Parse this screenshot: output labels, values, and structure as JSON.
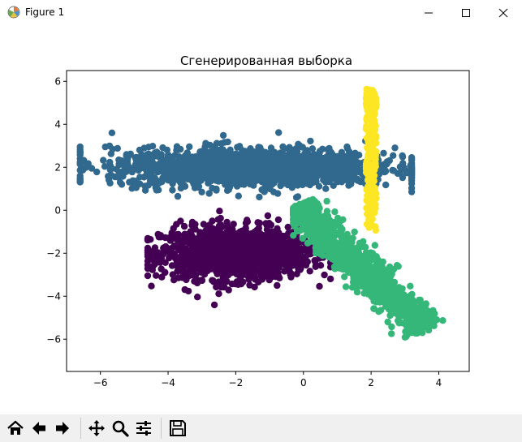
{
  "window": {
    "title": "Figure 1",
    "controls": {
      "minimize": "minimize-icon",
      "maximize": "maximize-icon",
      "close": "close-icon"
    }
  },
  "toolbar": {
    "buttons": [
      {
        "name": "home-button",
        "icon": "home-icon"
      },
      {
        "name": "back-button",
        "icon": "arrow-left-icon"
      },
      {
        "name": "forward-button",
        "icon": "arrow-right-icon"
      },
      {
        "name": "pan-button",
        "icon": "move-icon"
      },
      {
        "name": "zoom-button",
        "icon": "zoom-icon"
      },
      {
        "name": "configure-subplots-button",
        "icon": "sliders-icon"
      },
      {
        "name": "save-button",
        "icon": "save-icon"
      }
    ]
  },
  "chart_data": {
    "type": "scatter",
    "title": "Сгенерированная выборка",
    "xlabel": "",
    "ylabel": "",
    "xlim": [
      -7.0,
      4.9
    ],
    "ylim": [
      -7.5,
      6.5
    ],
    "xticks": [
      -6,
      -4,
      -2,
      0,
      2,
      4
    ],
    "yticks": [
      -6,
      -4,
      -2,
      0,
      2,
      4,
      6
    ],
    "grid": false,
    "legend": "none",
    "series": [
      {
        "color": "#440154",
        "cluster": {
          "center": [
            -2.0,
            -2.0
          ],
          "spread": [
            1.1,
            0.6
          ],
          "x_range": [
            -4.6,
            0.8
          ],
          "y_range": [
            -4.4,
            0.3
          ],
          "count": 1400
        }
      },
      {
        "color": "#31688e",
        "cluster": {
          "center": [
            -1.5,
            2.0
          ],
          "spread": [
            2.1,
            0.45
          ],
          "x_range": [
            -6.6,
            3.2
          ],
          "y_range": [
            0.3,
            3.8
          ],
          "count": 1600
        }
      },
      {
        "color": "#35b779",
        "cluster": {
          "center": [
            1.6,
            -2.2
          ],
          "line": {
            "from": [
              -0.2,
              0.2
            ],
            "to": [
              3.6,
              -5.5
            ]
          },
          "spread_perp": 0.3,
          "x_range": [
            -0.3,
            4.6
          ],
          "y_range": [
            -6.8,
            0.5
          ],
          "count": 1100
        }
      },
      {
        "color": "#fde725",
        "cluster": {
          "center": [
            2.0,
            1.5
          ],
          "x_range": [
            1.85,
            2.15
          ],
          "y_range": [
            -1.0,
            5.7
          ],
          "count": 260
        }
      }
    ]
  }
}
